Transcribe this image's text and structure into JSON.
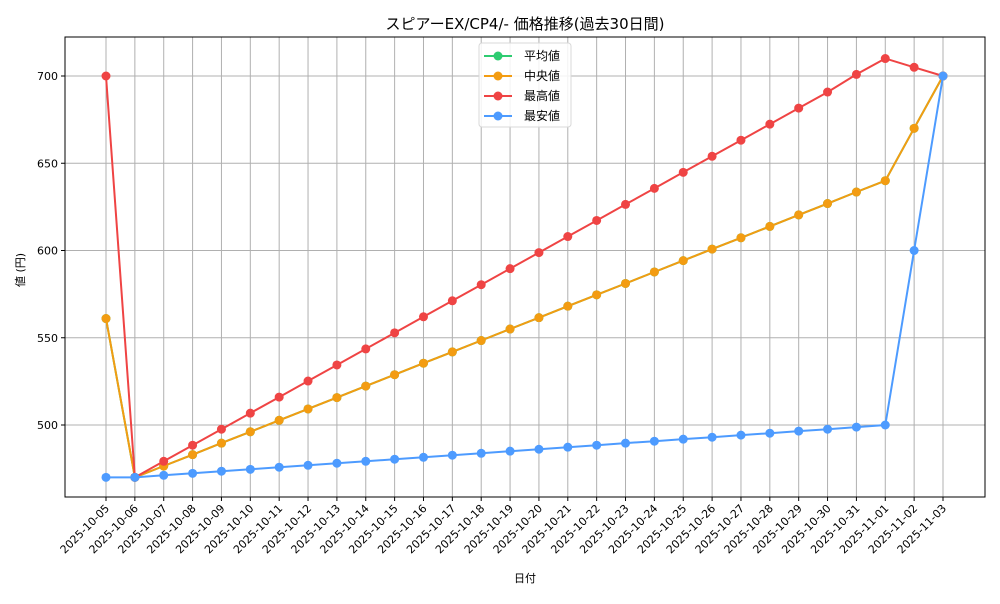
{
  "chart_data": {
    "type": "line",
    "title": "スピアーEX/CP4/- 価格推移(過去30日間)",
    "xlabel": "日付",
    "ylabel": "値 (円)",
    "ylim": [
      458,
      722
    ],
    "yticks": [
      500,
      550,
      600,
      650,
      700
    ],
    "grid": true,
    "legend_position": "upper center",
    "categories": [
      "2025-10-05",
      "2025-10-06",
      "2025-10-07",
      "2025-10-08",
      "2025-10-09",
      "2025-10-10",
      "2025-10-11",
      "2025-10-12",
      "2025-10-13",
      "2025-10-14",
      "2025-10-15",
      "2025-10-16",
      "2025-10-17",
      "2025-10-18",
      "2025-10-19",
      "2025-10-20",
      "2025-10-21",
      "2025-10-22",
      "2025-10-23",
      "2025-10-24",
      "2025-10-25",
      "2025-10-26",
      "2025-10-27",
      "2025-10-28",
      "2025-10-29",
      "2025-10-30",
      "2025-10-31",
      "2025-11-01",
      "2025-11-02",
      "2025-11-03"
    ],
    "series": [
      {
        "name": "平均値",
        "color": "#2ecc71",
        "values": [
          561,
          470,
          476.5,
          483,
          489.6,
          496.1,
          502.7,
          509.2,
          515.7,
          522.3,
          528.8,
          535.4,
          541.9,
          548.4,
          555,
          561.5,
          568.1,
          574.6,
          581.1,
          587.7,
          594.2,
          600.8,
          607.3,
          613.8,
          620.4,
          626.9,
          633.5,
          640,
          670,
          700
        ]
      },
      {
        "name": "中央値",
        "color": "#f39c12",
        "values": [
          561,
          470,
          476.5,
          483,
          489.6,
          496.1,
          502.7,
          509.2,
          515.7,
          522.3,
          528.8,
          535.4,
          541.9,
          548.4,
          555,
          561.5,
          568.1,
          574.6,
          581.1,
          587.7,
          594.2,
          600.8,
          607.3,
          613.8,
          620.4,
          626.9,
          633.5,
          640,
          670,
          700
        ]
      },
      {
        "name": "最高値",
        "color": "#ef4444",
        "values": [
          700,
          470,
          479.2,
          488.4,
          497.6,
          506.8,
          516,
          525.2,
          534.4,
          543.6,
          552.8,
          562,
          571.2,
          580.4,
          589.6,
          598.8,
          608,
          617.2,
          626.4,
          635.6,
          644.8,
          654,
          663.2,
          672.4,
          681.6,
          690.8,
          700.9,
          710,
          705,
          700
        ]
      },
      {
        "name": "最安値",
        "color": "#4d9bff",
        "values": [
          470,
          470,
          471.2,
          472.3,
          473.5,
          474.6,
          475.8,
          476.9,
          478.1,
          479.2,
          480.4,
          481.5,
          482.7,
          483.8,
          485,
          486.1,
          487.3,
          488.4,
          489.6,
          490.7,
          491.9,
          493,
          494.2,
          495.3,
          496.5,
          497.6,
          498.8,
          500,
          600,
          700
        ]
      }
    ]
  }
}
